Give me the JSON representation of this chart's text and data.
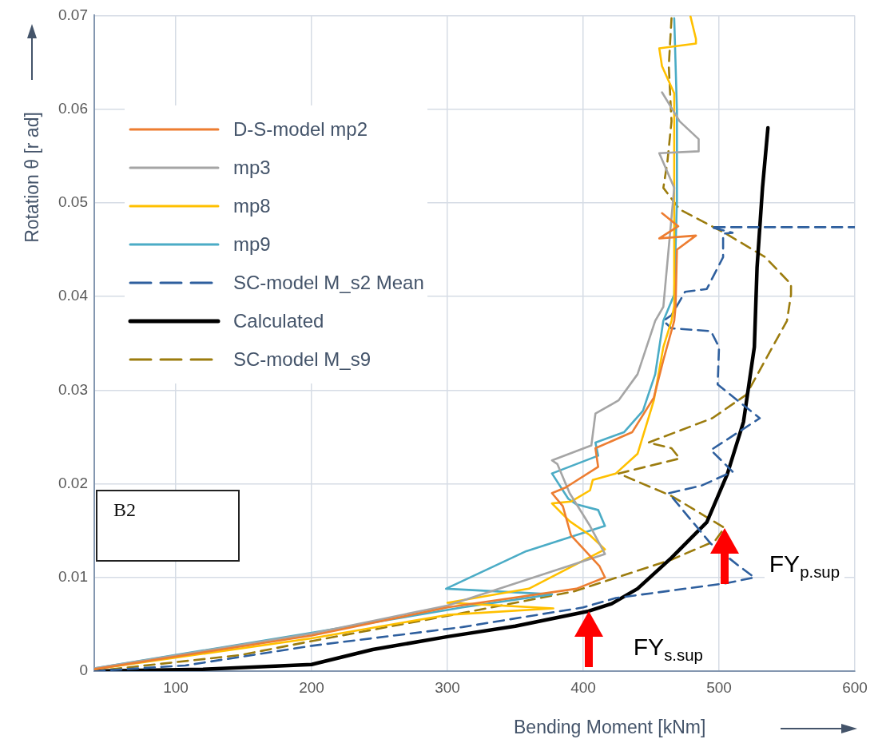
{
  "chart_data": {
    "type": "line",
    "xlabel": "Bending Moment [kNm]",
    "ylabel": "Rotation θ [r ad]",
    "xlim": [
      40,
      600
    ],
    "xticks": [
      100,
      200,
      300,
      400,
      500,
      600
    ],
    "ylim": [
      0,
      0.07
    ],
    "yticks": [
      0,
      0.01,
      0.02,
      0.03,
      0.04,
      0.05,
      0.06,
      0.07
    ],
    "grid": true,
    "legend": "top left",
    "marker": "none",
    "series": [
      {
        "name": "D-S-model mp2",
        "color": "#ed7d31",
        "line_style": "solid",
        "x": [
          40,
          200,
          300,
          395,
          416,
          412,
          391,
          385,
          377,
          387,
          411,
          409,
          436,
          452,
          459,
          467,
          468,
          469,
          483,
          456,
          470,
          458
        ],
        "values": [
          0.0002,
          0.0038,
          0.0068,
          0.0088,
          0.01,
          0.0112,
          0.0145,
          0.0176,
          0.019,
          0.0196,
          0.0218,
          0.0238,
          0.0255,
          0.0292,
          0.0332,
          0.0374,
          0.0389,
          0.045,
          0.0465,
          0.0462,
          0.0475,
          0.0489
        ]
      },
      {
        "name": "mp3",
        "color": "#a5a5a5",
        "line_style": "solid",
        "x": [
          40,
          200,
          300,
          391,
          416,
          405,
          390,
          381,
          377,
          406,
          409,
          426,
          440,
          453,
          459,
          467,
          456,
          485,
          485,
          471,
          458
        ],
        "values": [
          0.0003,
          0.004,
          0.007,
          0.0113,
          0.0125,
          0.0155,
          0.019,
          0.0221,
          0.0225,
          0.0241,
          0.0275,
          0.0289,
          0.0317,
          0.0374,
          0.0389,
          0.0516,
          0.0553,
          0.0555,
          0.0568,
          0.0587,
          0.0618
        ]
      },
      {
        "name": "mp8",
        "color": "#ffc000",
        "line_style": "solid",
        "x": [
          40,
          200,
          300,
          378,
          300,
          360,
          416,
          405,
          390,
          377,
          391,
          405,
          407,
          424,
          440,
          452,
          459,
          465,
          467,
          467,
          458,
          456,
          483,
          483,
          479
        ],
        "values": [
          0.0002,
          0.0035,
          0.006,
          0.0067,
          0.0073,
          0.0088,
          0.013,
          0.0145,
          0.016,
          0.0179,
          0.0181,
          0.0193,
          0.0204,
          0.0211,
          0.0232,
          0.0289,
          0.0346,
          0.0374,
          0.039,
          0.0617,
          0.0646,
          0.0665,
          0.067,
          0.0675,
          0.0699
        ]
      },
      {
        "name": "mp9",
        "color": "#4bacc6",
        "line_style": "solid",
        "x": [
          40,
          200,
          311,
          377,
          299,
          358,
          416,
          411,
          395,
          389,
          377,
          411,
          409,
          430,
          444,
          453,
          459,
          467,
          469,
          469,
          467
        ],
        "values": [
          0.0003,
          0.0041,
          0.0068,
          0.0082,
          0.0088,
          0.0128,
          0.0155,
          0.0172,
          0.0178,
          0.0184,
          0.0211,
          0.023,
          0.0244,
          0.0255,
          0.0278,
          0.0317,
          0.0374,
          0.0402,
          0.0502,
          0.0599,
          0.0697
        ]
      },
      {
        "name": "SC-model M_s2 Mean",
        "color": "#2e5f9e",
        "line_style": "dashed",
        "x": [
          40,
          107,
          200,
          311,
          400,
          424,
          506,
          526,
          514,
          494,
          479,
          463,
          487,
          510,
          494,
          530,
          499,
          500,
          494,
          465,
          459,
          465,
          475,
          491,
          503,
          503,
          510,
          494,
          600
        ],
        "values": [
          0,
          0.0006,
          0.0027,
          0.0047,
          0.0068,
          0.0078,
          0.0094,
          0.01,
          0.0113,
          0.0136,
          0.0162,
          0.019,
          0.0198,
          0.0213,
          0.0236,
          0.027,
          0.0306,
          0.0346,
          0.0363,
          0.0366,
          0.0374,
          0.038,
          0.0405,
          0.0408,
          0.0442,
          0.0467,
          0.0468,
          0.0474,
          0.0474
        ]
      },
      {
        "name": "Calculated",
        "color": "#000000",
        "line_style": "solid",
        "x": [
          40,
          120,
          200,
          245,
          301,
          350,
          404,
          421,
          440,
          465,
          491,
          506,
          518,
          526,
          528,
          532,
          536
        ],
        "values": [
          0,
          0.0002,
          0.0007,
          0.0023,
          0.0037,
          0.0048,
          0.0064,
          0.0072,
          0.0088,
          0.0121,
          0.0159,
          0.021,
          0.0266,
          0.0346,
          0.0431,
          0.0516,
          0.058
        ]
      },
      {
        "name": "SC-model M_s9",
        "color": "#9c7c0e",
        "line_style": "dashed",
        "x": [
          40,
          147,
          200,
          311,
          393,
          465,
          497,
          504,
          465,
          426,
          471,
          465,
          448,
          495,
          520,
          550,
          553,
          553,
          534,
          504,
          471,
          459,
          462,
          465,
          463,
          465
        ],
        "values": [
          0,
          0.0017,
          0.0032,
          0.0062,
          0.0085,
          0.0119,
          0.0139,
          0.0153,
          0.0187,
          0.0211,
          0.0227,
          0.0238,
          0.0244,
          0.027,
          0.0295,
          0.0374,
          0.0402,
          0.0413,
          0.0442,
          0.0468,
          0.0493,
          0.0516,
          0.0544,
          0.0587,
          0.0646,
          0.0697
        ]
      }
    ],
    "annotations": [
      "B2",
      {
        "text": "FY$_{s.sup}$",
        "x": 404,
        "y": 0.0064
      },
      {
        "text": "FY$_{p.sup}$",
        "x": 504,
        "y": 0.0153
      }
    ]
  }
}
